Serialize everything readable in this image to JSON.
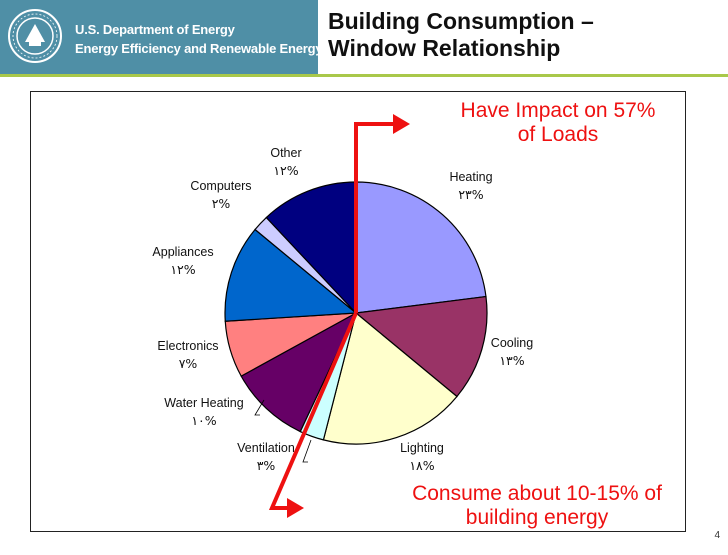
{
  "header": {
    "org_line1": "U.S. Department of Energy",
    "org_line2": "Energy Efficiency and Renewable Energy",
    "title_line1": "Building Consumption –",
    "title_line2": "Window Relationship"
  },
  "colors": {
    "header_bg": "#4f8fa6",
    "header_accent": "#a9c84a",
    "callout_red": "#ee1111"
  },
  "chart_data": {
    "type": "pie",
    "title": "",
    "categories": [
      "Heating",
      "Cooling",
      "Lighting",
      "Ventilation",
      "Water Heating",
      "Electronics",
      "Appliances",
      "Computers",
      "Other"
    ],
    "values": [
      23,
      13,
      18,
      3,
      10,
      7,
      12,
      2,
      12
    ],
    "value_labels": [
      "٢٣%",
      "١٣%",
      "١٨%",
      "٣%",
      "١٠%",
      "٧%",
      "١٢%",
      "٢%",
      "١٢%"
    ],
    "colors": [
      "#9999ff",
      "#993366",
      "#ffffcc",
      "#ccffff",
      "#660066",
      "#ff8080",
      "#0066cc",
      "#ccccff",
      "#000080"
    ],
    "start_angle_deg": 0,
    "direction": "clockwise"
  },
  "callouts": {
    "top_line1": "Have Impact on 57%",
    "top_line2": "of Loads",
    "bottom_line1": "Consume about 10-15% of",
    "bottom_line2": "building energy"
  },
  "page_number": "4"
}
